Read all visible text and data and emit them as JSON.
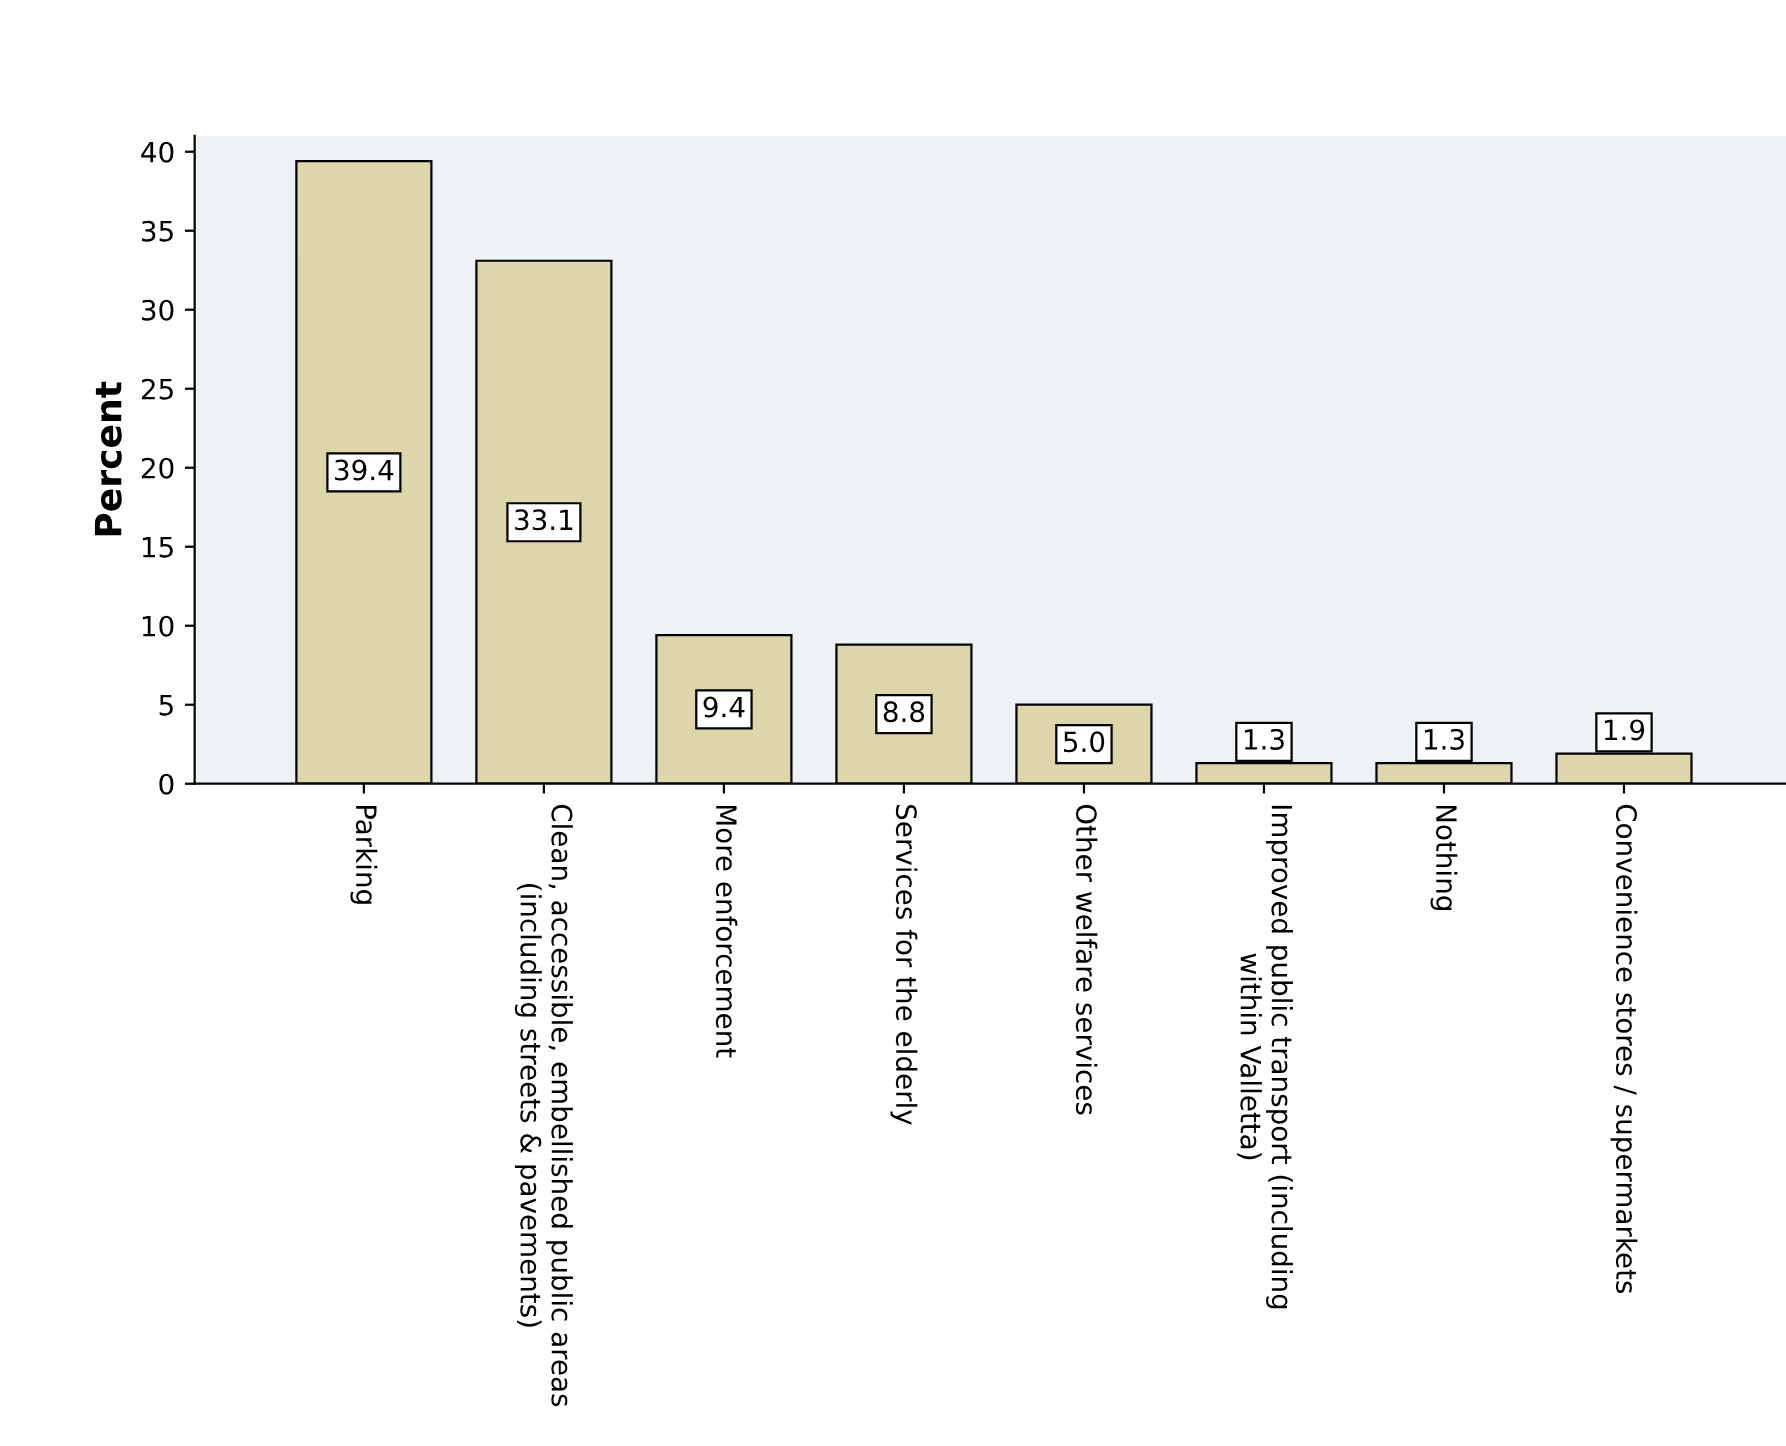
{
  "chart_data": {
    "type": "bar",
    "ylabel": "Percent",
    "categories": [
      "Parking",
      "Clean, accessible, embellished public areas\n(including streets & pavements)",
      "More enforcement",
      "Services for the elderly",
      "Other welfare services",
      "Improved public transport (including\nwithin Valletta)",
      "Nothing",
      "Convenience stores / supermarkets"
    ],
    "values": [
      39.4,
      33.1,
      9.4,
      8.8,
      5.0,
      1.3,
      1.3,
      1.9
    ],
    "value_labels": [
      "39.4",
      "33.1",
      "9.4",
      "8.8",
      "5.0",
      "1.3",
      "1.3",
      "1.9"
    ],
    "color": "#ddd6aa",
    "ylim": [
      0,
      41
    ],
    "yticks": [
      0,
      5,
      10,
      15,
      20,
      25,
      30,
      35,
      40
    ],
    "grid": false
  }
}
